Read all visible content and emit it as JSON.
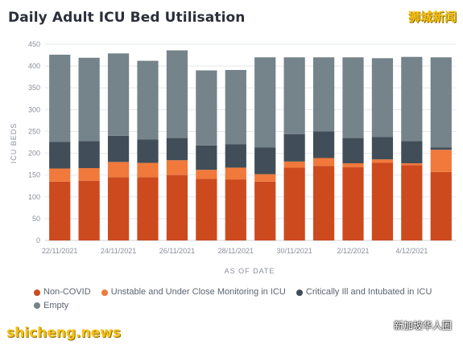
{
  "header": {
    "title": "Daily Adult ICU Bed Utilisation"
  },
  "watermarks": {
    "top_right": "狮城新闻",
    "bottom_left": "shicheng.news",
    "bottom_right": "新加坡华人圈"
  },
  "colors": {
    "non_covid": "#cd4a1f",
    "unstable": "#f0793b",
    "critical": "#414e59",
    "empty": "#75838a"
  },
  "chart_data": {
    "type": "bar",
    "stacked": true,
    "title": "Daily Adult ICU Bed Utilisation",
    "xlabel": "AS OF DATE",
    "ylabel": "ICU BEDS",
    "ylim": [
      0,
      450
    ],
    "yticks": [
      0,
      50,
      100,
      150,
      200,
      250,
      300,
      350,
      400,
      450
    ],
    "grid": true,
    "legend_position": "bottom",
    "categories": [
      "22/11/2021",
      "23/11/2021",
      "24/11/2021",
      "25/11/2021",
      "26/11/2021",
      "27/11/2021",
      "28/11/2021",
      "29/11/2021",
      "30/11/2021",
      "1/12/2021",
      "2/12/2021",
      "3/12/2021",
      "4/12/2021",
      "5/12/2021"
    ],
    "tick_labels": [
      "22/11/2021",
      "",
      "24/11/2021",
      "",
      "26/11/2021",
      "",
      "28/11/2021",
      "",
      "30/11/2021",
      "",
      "2/12/2021",
      "",
      "4/12/2021",
      ""
    ],
    "series": [
      {
        "name": "Non-COVID",
        "values": [
          135,
          137,
          145,
          145,
          150,
          141,
          140,
          135,
          167,
          171,
          168,
          178,
          173,
          157
        ]
      },
      {
        "name": "Unstable and Under Close Monitoring in ICU",
        "values": [
          30,
          29,
          35,
          33,
          34,
          21,
          27,
          17,
          14,
          18,
          9,
          8,
          4,
          51
        ]
      },
      {
        "name": "Critically Ill and Intubated in ICU",
        "values": [
          61,
          62,
          60,
          54,
          51,
          56,
          54,
          61,
          63,
          61,
          58,
          51,
          51,
          5
        ]
      },
      {
        "name": "Empty",
        "values": [
          200,
          191,
          189,
          180,
          201,
          172,
          170,
          207,
          176,
          170,
          185,
          181,
          193,
          207
        ]
      }
    ]
  }
}
